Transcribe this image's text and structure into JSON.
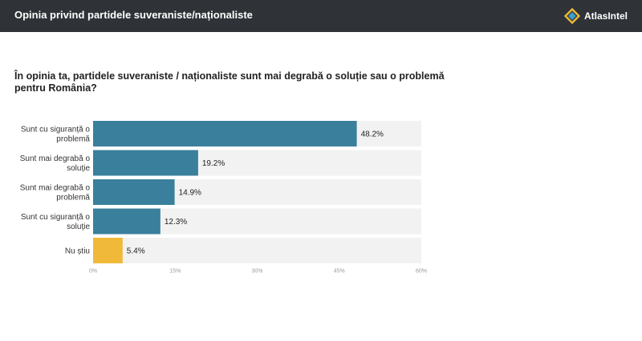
{
  "header": {
    "title": "Opinia privind partidele suveraniste/naționaliste",
    "brand": "AtlasIntel"
  },
  "colors": {
    "header_bg": "#2f3338",
    "bar_primary": "#3a7f9c",
    "bar_highlight": "#f0b93a",
    "track": "#f2f2f2"
  },
  "chart_data": {
    "type": "bar",
    "orientation": "horizontal",
    "title": "În opinia ta, partidele suveraniste / naționaliste sunt mai degrabă o soluție sau o problemă pentru România?",
    "categories": [
      [
        "Sunt cu siguranță o",
        "problemă"
      ],
      [
        "Sunt mai degrabă o",
        "soluție"
      ],
      [
        "Sunt mai degrabă o",
        "problemă"
      ],
      [
        "Sunt cu siguranță o",
        "soluție"
      ],
      [
        "Nu știu"
      ]
    ],
    "values": [
      48.2,
      19.2,
      14.9,
      12.3,
      5.4
    ],
    "value_labels": [
      "48.2%",
      "19.2%",
      "14.9%",
      "12.3%",
      "5.4%"
    ],
    "highlight": [
      false,
      false,
      false,
      false,
      true
    ],
    "xlim": [
      0,
      60
    ],
    "ticks": [
      0,
      15,
      30,
      45,
      60
    ],
    "tick_labels": [
      "0%",
      "15%",
      "30%",
      "45%",
      "60%"
    ],
    "grid": false,
    "legend": "none"
  }
}
